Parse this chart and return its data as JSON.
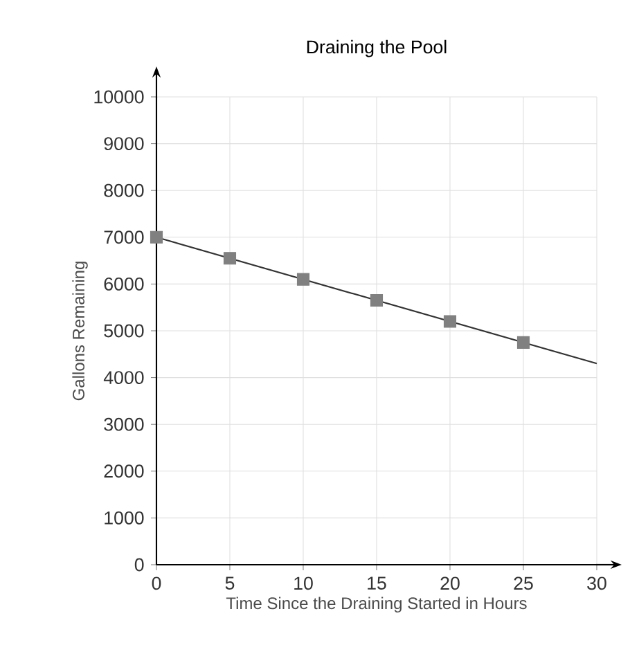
{
  "chart_data": {
    "type": "line",
    "title": "Draining the Pool",
    "xlabel": "Time Since the Draining Started in Hours",
    "ylabel": "Gallons Remaining",
    "series": [
      {
        "type": "scatter",
        "color": "#808080",
        "marker": "square",
        "x": [
          0,
          5,
          10,
          15,
          20,
          25
        ],
        "values": [
          7000,
          6550,
          6100,
          5650,
          5200,
          4750
        ]
      },
      {
        "type": "line",
        "color": "#333333",
        "marker": "none",
        "line_style": "solid",
        "x": [
          0,
          30
        ],
        "values": [
          7000,
          4300
        ]
      }
    ],
    "xlim": [
      0,
      30
    ],
    "ylim": [
      0,
      10000
    ],
    "xticks": [
      0,
      5,
      10,
      15,
      20,
      25,
      30
    ],
    "yticks": [
      0,
      1000,
      2000,
      3000,
      4000,
      5000,
      6000,
      7000,
      8000,
      9000,
      10000
    ],
    "grid": true
  }
}
